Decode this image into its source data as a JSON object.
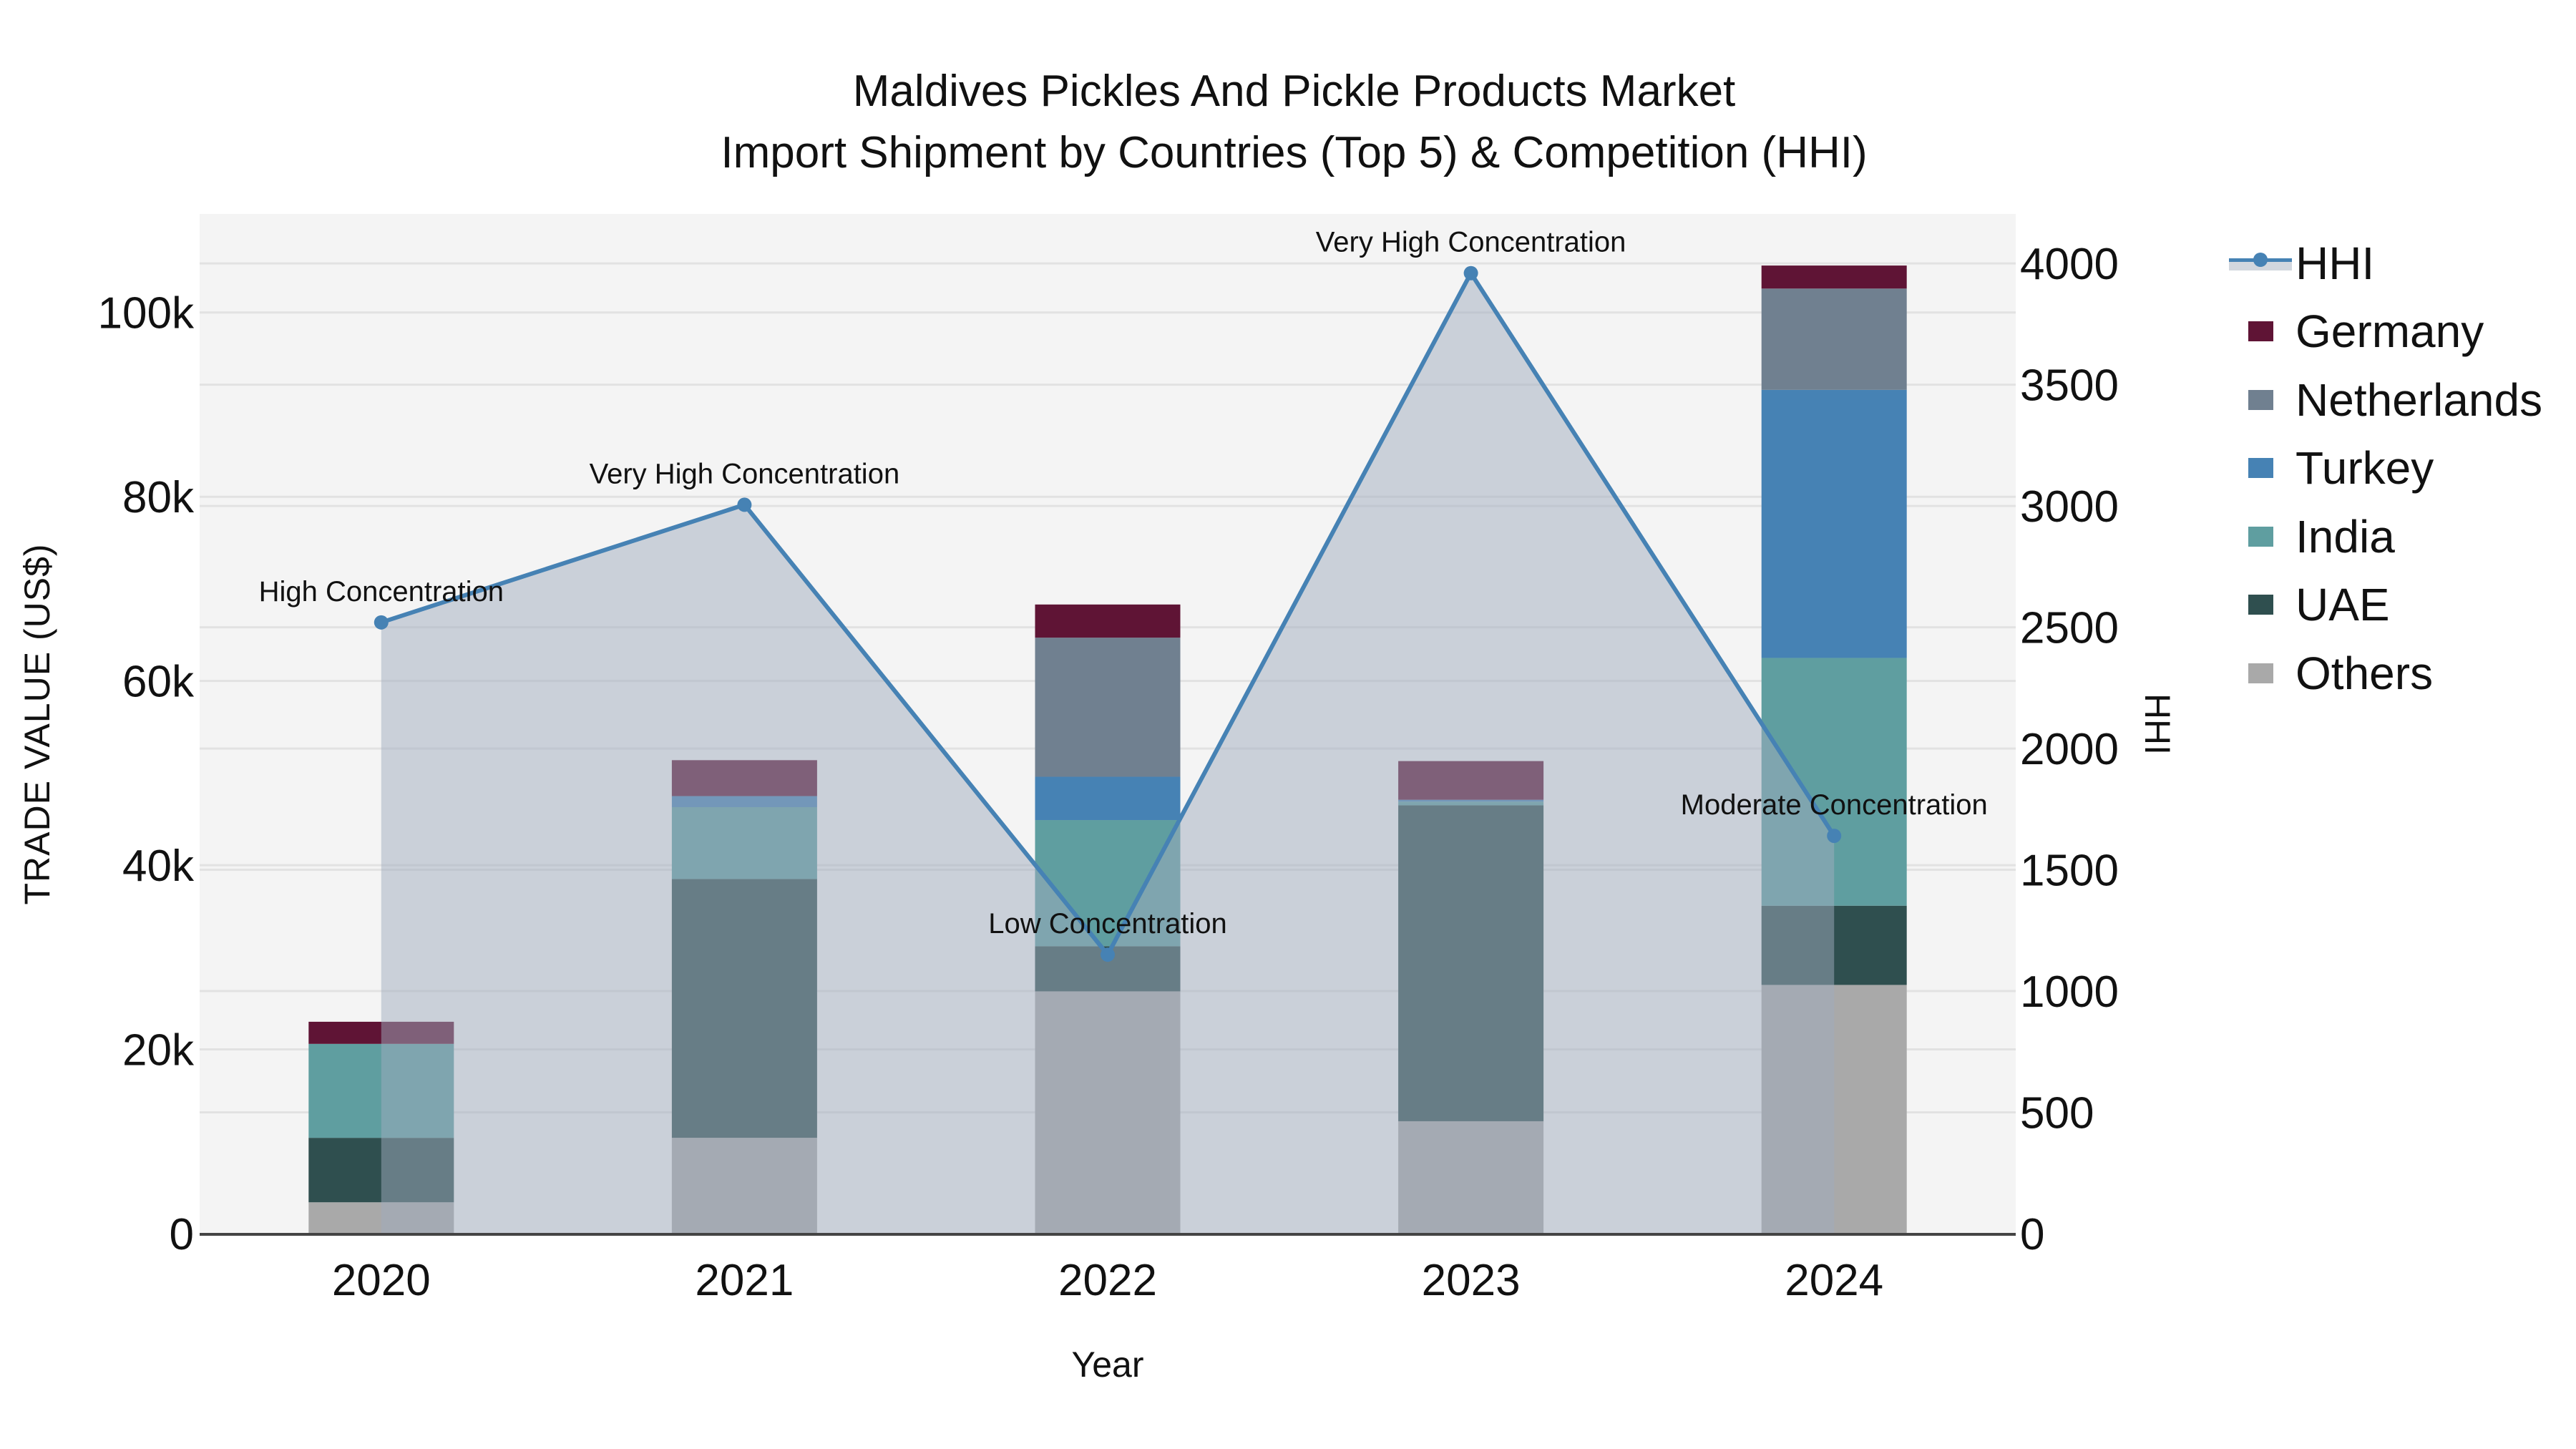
{
  "title": {
    "line1": "Maldives Pickles And Pickle Products Market",
    "line2": "Import Shipment by Countries (Top 5) & Competition (HHI)"
  },
  "axes": {
    "x_title": "Year",
    "y_title": "TRADE VALUE (US$)",
    "y2_title": "HHI",
    "y_ticks": [
      "0",
      "20k",
      "40k",
      "60k",
      "80k",
      "100k"
    ],
    "y2_ticks": [
      "0",
      "500",
      "1000",
      "1500",
      "2000",
      "2500",
      "3000",
      "3500",
      "4000"
    ],
    "x_ticks": [
      "2020",
      "2021",
      "2022",
      "2023",
      "2024"
    ]
  },
  "legend": {
    "items": [
      {
        "label": "HHI",
        "type": "line",
        "color": "#4682B4"
      },
      {
        "label": "Germany",
        "type": "bar",
        "color": "#5F1435"
      },
      {
        "label": "Netherlands",
        "type": "bar",
        "color": "#708090"
      },
      {
        "label": "Turkey",
        "type": "bar",
        "color": "#4682B4"
      },
      {
        "label": "India",
        "type": "bar",
        "color": "#5F9EA0"
      },
      {
        "label": "UAE",
        "type": "bar",
        "color": "#2F4F4F"
      },
      {
        "label": "Others",
        "type": "bar",
        "color": "#A9A9A9"
      }
    ]
  },
  "annotations": [
    {
      "year": "2020",
      "text": "High Concentration"
    },
    {
      "year": "2021",
      "text": "Very High Concentration"
    },
    {
      "year": "2022",
      "text": "Low Concentration"
    },
    {
      "year": "2023",
      "text": "Very High Concentration"
    },
    {
      "year": "2024",
      "text": "Moderate Concentration"
    }
  ],
  "colors": {
    "plot_bg": "#F4F4F4",
    "grid": "#E2E2E2",
    "hhi_line": "#4682B4",
    "hhi_fill": "rgba(160,172,190,0.5)"
  },
  "chart_data": {
    "type": "bar",
    "subtype": "stacked bar + line (dual axis)",
    "title": "Maldives Pickles And Pickle Products Market — Import Shipment by Countries (Top 5) & Competition (HHI)",
    "xlabel": "Year",
    "ylabel": "TRADE VALUE (US$)",
    "y2label": "HHI",
    "categories": [
      "2020",
      "2021",
      "2022",
      "2023",
      "2024"
    ],
    "ylim": [
      0,
      110700
    ],
    "y2lim": [
      0,
      4204
    ],
    "grid": true,
    "legend_position": "right",
    "series": [
      {
        "name": "Others",
        "type": "bar",
        "color": "#A9A9A9",
        "values": [
          3400,
          10400,
          26300,
          12200,
          27000
        ]
      },
      {
        "name": "UAE",
        "type": "bar",
        "color": "#2F4F4F",
        "values": [
          7000,
          28100,
          4900,
          34300,
          8600
        ]
      },
      {
        "name": "India",
        "type": "bar",
        "color": "#5F9EA0",
        "values": [
          10200,
          7800,
          13700,
          400,
          26900
        ]
      },
      {
        "name": "Turkey",
        "type": "bar",
        "color": "#4682B4",
        "values": [
          0,
          1200,
          4700,
          200,
          29100
        ]
      },
      {
        "name": "Netherlands",
        "type": "bar",
        "color": "#708090",
        "values": [
          0,
          0,
          15100,
          0,
          11000
        ]
      },
      {
        "name": "Germany",
        "type": "bar",
        "color": "#5F1435",
        "values": [
          2400,
          3900,
          3600,
          4200,
          2500
        ]
      },
      {
        "name": "HHI",
        "type": "line+area",
        "axis": "y2",
        "color": "#4682B4",
        "values": [
          2520,
          3005,
          1150,
          3960,
          1640
        ]
      }
    ],
    "totals": [
      23000,
      51400,
      68300,
      51300,
      105100
    ],
    "annotations": [
      "High Concentration",
      "Very High Concentration",
      "Low Concentration",
      "Very High Concentration",
      "Moderate Concentration"
    ]
  }
}
